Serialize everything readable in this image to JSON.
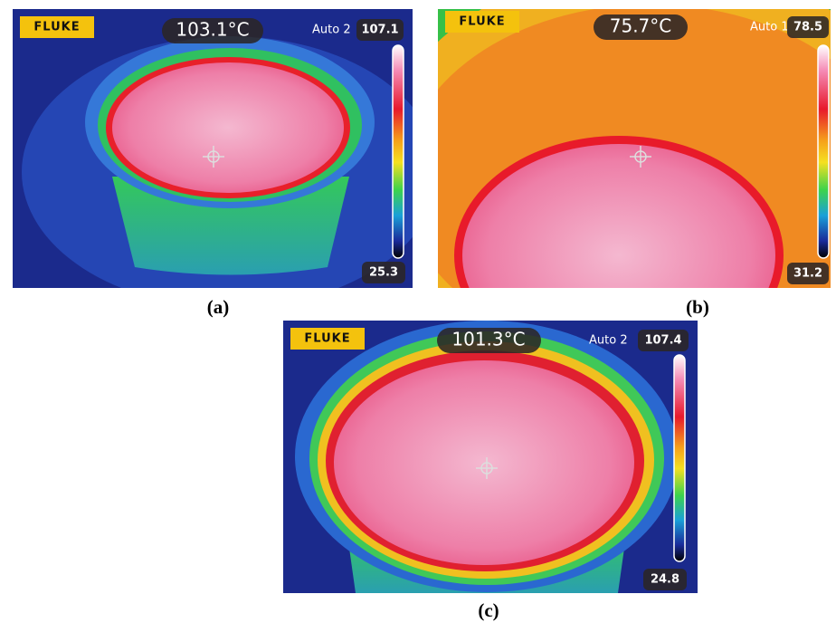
{
  "panels": [
    {
      "logo": "FLUKE",
      "temperature": "103.1°C",
      "mode": "Auto 2",
      "max": "107.1",
      "min": "25.3",
      "caption": "(a)"
    },
    {
      "logo": "FLUKE",
      "temperature": "75.7°C",
      "mode": "Auto 1",
      "max": "78.5",
      "min": "31.2",
      "caption": "(b)"
    },
    {
      "logo": "FLUKE",
      "temperature": "101.3°C",
      "mode": "Auto 2",
      "max": "107.4",
      "min": "24.8",
      "caption": "(c)"
    }
  ]
}
